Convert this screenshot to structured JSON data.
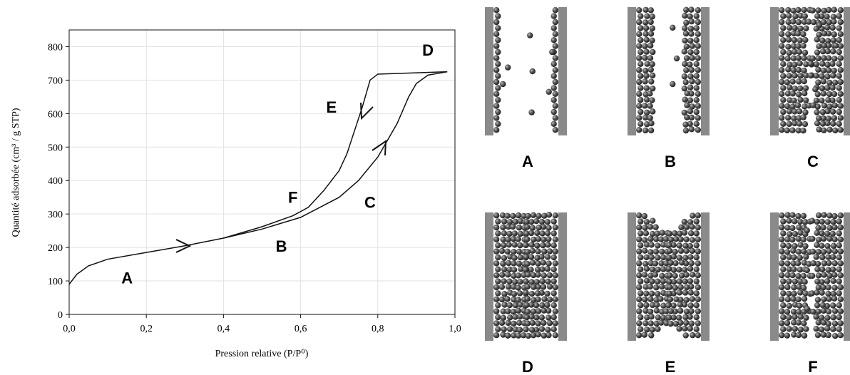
{
  "chart_data": {
    "type": "line",
    "xlabel": "Pression relative (P/P⁰)",
    "ylabel": "Quantité adsorbée (cm³ / g STP)",
    "xlim": [
      0,
      1.0
    ],
    "ylim": [
      0,
      850
    ],
    "xticks": [
      {
        "value": 0,
        "label": "0,0"
      },
      {
        "value": 0.2,
        "label": "0,2"
      },
      {
        "value": 0.4,
        "label": "0,4"
      },
      {
        "value": 0.6,
        "label": "0,6"
      },
      {
        "value": 0.8,
        "label": "0,8"
      },
      {
        "value": 1.0,
        "label": "1,0"
      }
    ],
    "yticks": [
      0,
      100,
      200,
      300,
      400,
      500,
      600,
      700,
      800
    ],
    "grid": true,
    "series": [
      {
        "color": "#111111",
        "x": [
          0,
          0.02,
          0.05,
          0.1,
          0.2,
          0.3,
          0.4,
          0.5,
          0.6,
          0.7,
          0.75,
          0.8,
          0.85,
          0.88,
          0.9,
          0.93,
          0.98
        ],
        "values": [
          90,
          120,
          145,
          165,
          185,
          205,
          228,
          255,
          290,
          350,
          400,
          470,
          570,
          650,
          690,
          715,
          725
        ]
      },
      {
        "color": "#111111",
        "x": [
          0.98,
          0.9,
          0.8,
          0.78,
          0.76,
          0.74,
          0.72,
          0.7,
          0.66,
          0.62,
          0.58,
          0.5,
          0.4
        ],
        "values": [
          725,
          722,
          718,
          700,
          620,
          550,
          480,
          430,
          370,
          320,
          295,
          262,
          228
        ]
      }
    ],
    "annotations": [
      {
        "text": "A",
        "x": 0.15,
        "y": 110
      },
      {
        "text": "B",
        "x": 0.55,
        "y": 205
      },
      {
        "text": "C",
        "x": 0.78,
        "y": 335
      },
      {
        "text": "D",
        "x": 0.93,
        "y": 790
      },
      {
        "text": "E",
        "x": 0.68,
        "y": 620
      },
      {
        "text": "F",
        "x": 0.58,
        "y": 350
      }
    ]
  },
  "panels": [
    "A",
    "B",
    "C",
    "D",
    "E",
    "F"
  ]
}
